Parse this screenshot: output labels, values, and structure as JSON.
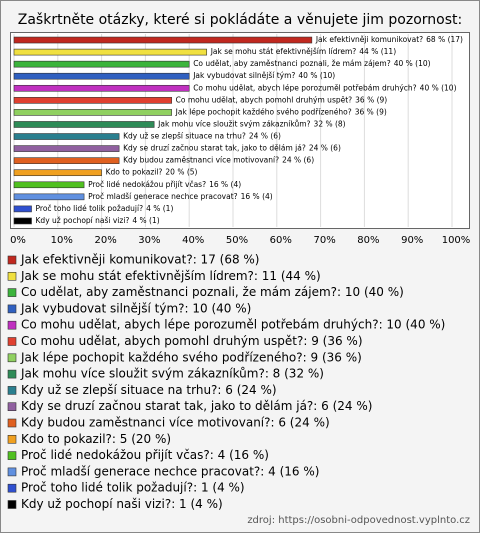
{
  "chart_data": {
    "type": "bar",
    "orientation": "horizontal",
    "title": "Zaškrtněte otázky, které si pokládáte a věnujete jim pozornost:",
    "categories": [
      "Jak efektivněji komunikovat?",
      "Jak se mohu stát efektivnějším lídrem?",
      "Co udělat, aby zaměstnanci poznali, že mám zájem?",
      "Jak vybudovat silnější tým?",
      "Co mohu udělat, abych lépe porozuměl potřebám druhých?",
      "Co mohu udělat, abych pomohl druhým uspět?",
      "Jak lépe pochopit každého svého podřízeného?",
      "Jak mohu více sloužit svým zákazníkům?",
      "Kdy už se zlepší situace na trhu?",
      "Kdy se druzí začnou starat tak, jako to dělám já?",
      "Kdy budou zaměstnanci více motivovaní?",
      "Kdo to pokazil?",
      "Proč lidé nedokážou přijít včas?",
      "Proč mladší generace nechce pracovat?",
      "Proč toho lidé tolik požadují?",
      "Kdy už pochopí naši vizi?"
    ],
    "values": [
      68,
      44,
      40,
      40,
      40,
      36,
      36,
      32,
      24,
      24,
      24,
      20,
      16,
      16,
      4,
      4
    ],
    "value_labels": [
      "68 % (17)",
      "44 % (11)",
      "40 % (10)",
      "40 % (10)",
      "40 % (10)",
      "36 % (9)",
      "36 % (9)",
      "32 % (8)",
      "24 % (6)",
      "24 % (6)",
      "24 % (6)",
      "20 % (5)",
      "16 % (4)",
      "16 % (4)",
      "4 % (1)",
      "4 % (1)"
    ],
    "legend_labels": [
      "Jak efektivněji komunikovat?: 17 (68 %)",
      "Jak se mohu stát efektivnějším lídrem?: 11 (44 %)",
      "Co udělat, aby zaměstnanci poznali, že mám zájem?: 10 (40 %)",
      "Jak vybudovat silnější tým?: 10 (40 %)",
      "Co mohu udělat, abych lépe porozuměl potřebám druhých?: 10 (40 %)",
      "Co mohu udělat, abych pomohl druhým uspět?: 9 (36 %)",
      "Jak lépe pochopit každého svého podřízeného?: 9 (36 %)",
      "Jak mohu více sloužit svým zákazníkům?: 8 (32 %)",
      "Kdy už se zlepší situace na trhu?: 6 (24 %)",
      "Kdy se druzí začnou starat tak, jako to dělám já?: 6 (24 %)",
      "Kdy budou zaměstnanci více motivovaní?: 6 (24 %)",
      "Kdo to pokazil?: 5 (20 %)",
      "Proč lidé nedokážou přijít včas?: 4 (16 %)",
      "Proč mladší generace nechce pracovat?: 4 (16 %)",
      "Proč toho lidé tolik požadují?: 1 (4 %)",
      "Kdy už pochopí naši vizi?: 1 (4 %)"
    ],
    "colors": [
      "#c0281f",
      "#f0e040",
      "#3cb43c",
      "#3060c0",
      "#c030c0",
      "#e04030",
      "#90d060",
      "#2e8b57",
      "#2a7f8f",
      "#9060a0",
      "#e06020",
      "#f0a020",
      "#50c020",
      "#6090e0",
      "#3050d0",
      "#000000"
    ],
    "xlim": [
      0,
      100
    ],
    "xticks": [
      {
        "value": 0,
        "label": "0%"
      },
      {
        "value": 10,
        "label": "10%"
      },
      {
        "value": 20,
        "label": "20%"
      },
      {
        "value": 30,
        "label": "30%"
      },
      {
        "value": 40,
        "label": "40%"
      },
      {
        "value": 50,
        "label": "50%"
      },
      {
        "value": 60,
        "label": "60%"
      },
      {
        "value": 70,
        "label": "70%"
      },
      {
        "value": 80,
        "label": "80%"
      },
      {
        "value": 90,
        "label": "90%"
      },
      {
        "value": 100,
        "label": "100%"
      }
    ],
    "grid": true,
    "source": "zdroj: https://osobni-odpovednost.vyplnto.cz"
  }
}
